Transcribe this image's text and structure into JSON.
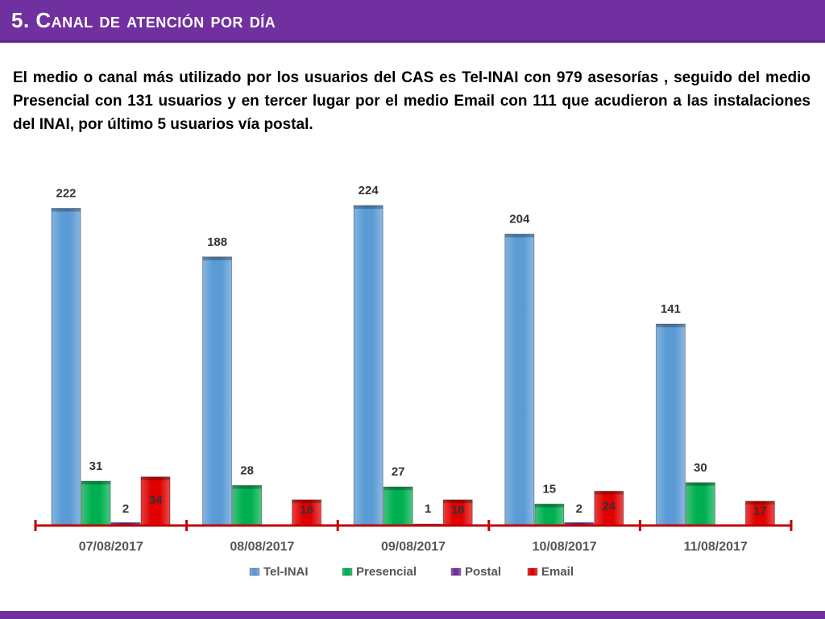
{
  "slide": {
    "title": "5. Canal de atención por día",
    "paragraph": "El medio o canal más utilizado por los usuarios del CAS es Tel-INAI con 979 asesorías , seguido del medio Presencial con 131 usuarios y en tercer lugar por el medio Email con 111 que acudieron a las instalaciones del INAI, por último 5 usuarios vía postal."
  },
  "colors": {
    "header": "#7030a0",
    "tel_inai": "#5b9bd5",
    "presencial": "#00b050",
    "postal": "#7030a0",
    "email": "#e00000",
    "axis": "#c00000"
  },
  "chart_data": {
    "type": "bar",
    "categories": [
      "07/08/2017",
      "08/08/2017",
      "09/08/2017",
      "10/08/2017",
      "11/08/2017"
    ],
    "series": [
      {
        "name": "Tel-INAI",
        "values": [
          222,
          188,
          224,
          204,
          141
        ]
      },
      {
        "name": "Presencial",
        "values": [
          31,
          28,
          27,
          15,
          30
        ]
      },
      {
        "name": "Postal",
        "values": [
          2,
          0,
          1,
          2,
          0
        ]
      },
      {
        "name": "Email",
        "values": [
          34,
          18,
          18,
          24,
          17
        ]
      }
    ],
    "data_labels": [
      [
        "222",
        "188",
        "224",
        "204",
        "141"
      ],
      [
        "31",
        "28",
        "27",
        "15",
        "30"
      ],
      [
        "2",
        "",
        "1",
        "2",
        ""
      ],
      [
        "34",
        "18",
        "18",
        "24",
        "17"
      ]
    ],
    "title": "",
    "xlabel": "",
    "ylabel": "",
    "ylim": [
      0,
      230
    ],
    "grid": false,
    "legend_position": "bottom"
  }
}
